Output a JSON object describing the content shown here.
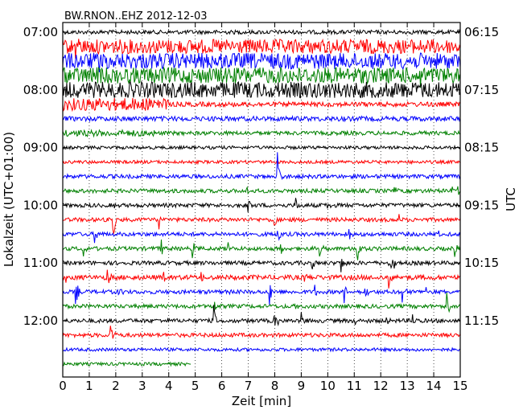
{
  "chart_data": {
    "type": "line",
    "title": "BW.RNON..EHZ 2012-12-03",
    "xlabel": "Zeit  [min]",
    "ylabel_left": "Lokalzeit (UTC+01:00)",
    "ylabel_right": "UTC",
    "xlim": [
      0,
      15
    ],
    "x_ticks": [
      "0",
      "1",
      "2",
      "3",
      "4",
      "5",
      "6",
      "7",
      "8",
      "9",
      "10",
      "11",
      "12",
      "13",
      "14",
      "15"
    ],
    "left_ticks": [
      {
        "label": "07:00",
        "trace": 0
      },
      {
        "label": "08:00",
        "trace": 4
      },
      {
        "label": "09:00",
        "trace": 8
      },
      {
        "label": "10:00",
        "trace": 12
      },
      {
        "label": "11:00",
        "trace": 16
      },
      {
        "label": "12:00",
        "trace": 20
      }
    ],
    "right_ticks": [
      {
        "label": "06:15",
        "trace": 0
      },
      {
        "label": "07:15",
        "trace": 4
      },
      {
        "label": "08:15",
        "trace": 8
      },
      {
        "label": "09:15",
        "trace": 12
      },
      {
        "label": "10:15",
        "trace": 16
      },
      {
        "label": "11:15",
        "trace": 20
      }
    ],
    "grid": "vertical dotted",
    "colors": [
      "#000000",
      "#ff0000",
      "#0000ff",
      "#008000"
    ],
    "trace_minutes": 15,
    "series": [
      {
        "trace": 0,
        "color": "#000000",
        "end_min": 15,
        "noise": 2.5,
        "events": []
      },
      {
        "trace": 1,
        "color": "#ff0000",
        "end_min": 15,
        "noise": 9,
        "events": [
          {
            "t": 0.5,
            "amp": 12
          }
        ]
      },
      {
        "trace": 2,
        "color": "#0000ff",
        "end_min": 15,
        "noise": 10,
        "events": [
          {
            "t": 1.4,
            "amp": 10
          }
        ]
      },
      {
        "trace": 3,
        "color": "#008000",
        "end_min": 15,
        "noise": 10,
        "events": [
          {
            "t": 1.2,
            "amp": 14
          },
          {
            "t": 13.5,
            "amp": 12
          }
        ]
      },
      {
        "trace": 4,
        "color": "#000000",
        "end_min": 15,
        "noise": 10,
        "events": [
          {
            "t": 9.6,
            "amp": 12
          }
        ]
      },
      {
        "trace": 5,
        "color": "#ff0000",
        "end_min": 15,
        "noise": 3,
        "burst": [
          0,
          4.0,
          8
        ],
        "events": [
          {
            "t": 3.8,
            "amp": 12
          }
        ]
      },
      {
        "trace": 6,
        "color": "#0000ff",
        "end_min": 15,
        "noise": 3,
        "events": []
      },
      {
        "trace": 7,
        "color": "#008000",
        "end_min": 15,
        "noise": 2.5,
        "burst": [
          0,
          3.5,
          4
        ],
        "events": []
      },
      {
        "trace": 8,
        "color": "#000000",
        "end_min": 15,
        "noise": 2,
        "events": []
      },
      {
        "trace": 9,
        "color": "#ff0000",
        "end_min": 15,
        "noise": 2,
        "events": []
      },
      {
        "trace": 10,
        "color": "#0000ff",
        "end_min": 15,
        "noise": 2.5,
        "events": [
          {
            "t": 8.1,
            "amp": 28
          }
        ]
      },
      {
        "trace": 11,
        "color": "#008000",
        "end_min": 15,
        "noise": 2.5,
        "events": [
          {
            "t": 6.9,
            "amp": 12
          },
          {
            "t": 12.5,
            "amp": 8
          },
          {
            "t": 14.7,
            "amp": 14
          },
          {
            "t": 14.9,
            "amp": 10
          }
        ]
      },
      {
        "trace": 12,
        "color": "#000000",
        "end_min": 15,
        "noise": 2.5,
        "events": [
          {
            "t": 1.9,
            "amp": 8
          },
          {
            "t": 7.0,
            "amp": 14
          },
          {
            "t": 8.8,
            "amp": 14
          },
          {
            "t": 10.0,
            "amp": 8
          }
        ]
      },
      {
        "trace": 13,
        "color": "#ff0000",
        "end_min": 15,
        "noise": 2.5,
        "events": [
          {
            "t": 1.9,
            "amp": 30
          },
          {
            "t": 3.6,
            "amp": 20
          },
          {
            "t": 8.0,
            "amp": 12
          },
          {
            "t": 12.7,
            "amp": 8
          }
        ]
      },
      {
        "trace": 14,
        "color": "#0000ff",
        "end_min": 15,
        "noise": 2.5,
        "events": [
          {
            "t": 1.2,
            "amp": 14
          },
          {
            "t": 8.1,
            "amp": 20
          },
          {
            "t": 10.8,
            "amp": 18
          },
          {
            "t": 14.2,
            "amp": 8
          }
        ]
      },
      {
        "trace": 15,
        "color": "#008000",
        "end_min": 15,
        "noise": 2.5,
        "events": [
          {
            "t": 0.8,
            "amp": 14
          },
          {
            "t": 3.7,
            "amp": 18
          },
          {
            "t": 4.9,
            "amp": 12
          },
          {
            "t": 6.2,
            "amp": 12
          },
          {
            "t": 8.2,
            "amp": 14
          },
          {
            "t": 9.7,
            "amp": 12
          },
          {
            "t": 11.1,
            "amp": 30
          },
          {
            "t": 14.8,
            "amp": 12
          }
        ]
      },
      {
        "trace": 16,
        "color": "#000000",
        "end_min": 15,
        "noise": 2.5,
        "events": [
          {
            "t": 9.4,
            "amp": 12
          },
          {
            "t": 10.5,
            "amp": 16
          },
          {
            "t": 12.3,
            "amp": 22
          },
          {
            "t": 12.5,
            "amp": 12
          }
        ]
      },
      {
        "trace": 17,
        "color": "#ff0000",
        "end_min": 15,
        "noise": 3,
        "events": [
          {
            "t": 0.1,
            "amp": 16
          },
          {
            "t": 1.7,
            "amp": 14
          },
          {
            "t": 3.8,
            "amp": 12
          },
          {
            "t": 5.2,
            "amp": 10
          },
          {
            "t": 9.1,
            "amp": 8
          },
          {
            "t": 12.3,
            "amp": 20
          }
        ]
      },
      {
        "trace": 18,
        "color": "#0000ff",
        "end_min": 15,
        "noise": 2.5,
        "events": [
          {
            "t": 0.5,
            "amp": 16
          },
          {
            "t": 2.1,
            "amp": 10
          },
          {
            "t": 6.3,
            "amp": 10
          },
          {
            "t": 7.8,
            "amp": 18
          },
          {
            "t": 9.5,
            "amp": 14
          },
          {
            "t": 10.6,
            "amp": 22
          },
          {
            "t": 11.4,
            "amp": 14
          },
          {
            "t": 12.8,
            "amp": 30
          },
          {
            "t": 13.7,
            "amp": 12
          }
        ]
      },
      {
        "trace": 19,
        "color": "#008000",
        "end_min": 15,
        "noise": 2.5,
        "events": [
          {
            "t": 5.7,
            "amp": 14
          },
          {
            "t": 8.8,
            "amp": 10
          },
          {
            "t": 14.5,
            "amp": 20
          }
        ]
      },
      {
        "trace": 20,
        "color": "#000000",
        "end_min": 15,
        "noise": 2.5,
        "events": [
          {
            "t": 5.7,
            "amp": 22
          },
          {
            "t": 8.0,
            "amp": 16
          },
          {
            "t": 9.0,
            "amp": 18
          },
          {
            "t": 11.0,
            "amp": 16
          },
          {
            "t": 12.2,
            "amp": 10
          },
          {
            "t": 13.2,
            "amp": 14
          }
        ]
      },
      {
        "trace": 21,
        "color": "#ff0000",
        "end_min": 15,
        "noise": 2.5,
        "events": [
          {
            "t": 1.8,
            "amp": 24
          }
        ]
      },
      {
        "trace": 22,
        "color": "#0000ff",
        "end_min": 15,
        "noise": 2,
        "events": []
      },
      {
        "trace": 23,
        "color": "#008000",
        "end_min": 4.85,
        "noise": 2,
        "events": []
      }
    ]
  }
}
